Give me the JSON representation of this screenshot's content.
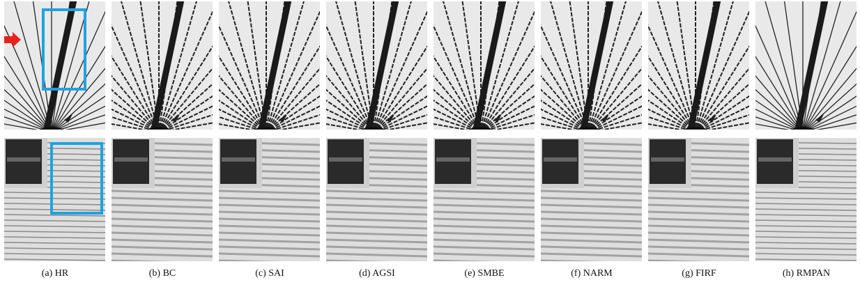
{
  "figure": {
    "captions": [
      "(a) HR",
      "(b) BC",
      "(c) SAI",
      "(d) AGSI",
      "(e) SMBE",
      "(f) NARM",
      "(g) FIRF",
      "(h) RMPAN"
    ]
  }
}
